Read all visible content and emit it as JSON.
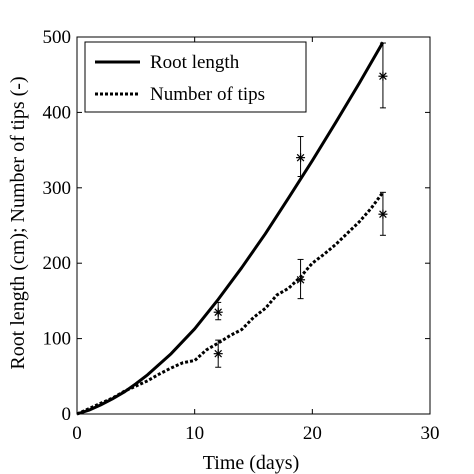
{
  "chart_data": {
    "type": "line",
    "xlabel": "Time (days)",
    "ylabel": "Root length (cm); Number of tips (-)",
    "xlim": [
      0,
      30
    ],
    "ylim": [
      0,
      500
    ],
    "xticks": [
      "0",
      "10",
      "20",
      "30"
    ],
    "yticks": [
      "0",
      "100",
      "200",
      "300",
      "400",
      "500"
    ],
    "grid": false,
    "legend_position": "top-left",
    "series": [
      {
        "name": "Root length",
        "style": "solid",
        "x": [
          0,
          1,
          2,
          3,
          4,
          5,
          6,
          8,
          10,
          12,
          14,
          16,
          18,
          20,
          22,
          24,
          26
        ],
        "y": [
          0,
          5,
          12,
          20,
          29,
          40,
          52,
          80,
          113,
          152,
          194,
          239,
          287,
          336,
          387,
          439,
          493
        ]
      },
      {
        "name": "Number of tips",
        "style": "dotted",
        "x": [
          0,
          1,
          2,
          3,
          4,
          5,
          6,
          7,
          8,
          9,
          10,
          11,
          12,
          13,
          14,
          15,
          16,
          17,
          18,
          19,
          20,
          21,
          22,
          23,
          24,
          25,
          26
        ],
        "y": [
          0,
          7,
          14,
          21,
          30,
          37,
          44,
          53,
          61,
          68,
          71,
          85,
          94,
          104,
          112,
          128,
          140,
          158,
          167,
          182,
          200,
          212,
          225,
          240,
          255,
          273,
          294
        ]
      }
    ],
    "measurements": [
      {
        "x": 12,
        "y": 135,
        "err_low": 125,
        "err_high": 148
      },
      {
        "x": 12,
        "y": 80,
        "err_low": 62,
        "err_high": 98
      },
      {
        "x": 19,
        "y": 340,
        "err_low": 315,
        "err_high": 368
      },
      {
        "x": 19,
        "y": 178,
        "err_low": 153,
        "err_high": 205
      },
      {
        "x": 26,
        "y": 448,
        "err_low": 406,
        "err_high": 492
      },
      {
        "x": 26,
        "y": 265,
        "err_low": 237,
        "err_high": 294
      }
    ]
  },
  "colors": {
    "line": "#000000",
    "background": "#ffffff"
  }
}
